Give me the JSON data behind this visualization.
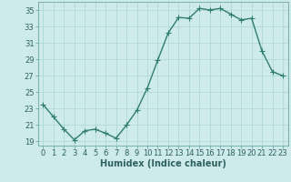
{
  "x": [
    0,
    1,
    2,
    3,
    4,
    5,
    6,
    7,
    8,
    9,
    10,
    11,
    12,
    13,
    14,
    15,
    16,
    17,
    18,
    19,
    20,
    21,
    22,
    23
  ],
  "y": [
    23.5,
    22.0,
    20.5,
    19.2,
    20.3,
    20.5,
    20.0,
    19.4,
    21.0,
    22.8,
    25.5,
    28.9,
    32.2,
    34.1,
    34.0,
    35.2,
    35.0,
    35.2,
    34.5,
    33.8,
    34.0,
    30.0,
    27.5,
    27.0
  ],
  "line_color": "#2e7d6e",
  "marker_color": "#2e7d6e",
  "bg_color": "#ceeaea",
  "grid_color": "#b0d8d8",
  "xlabel": "Humidex (Indice chaleur)",
  "ylim": [
    18.5,
    36
  ],
  "xlim": [
    -0.5,
    23.5
  ],
  "yticks": [
    19,
    21,
    23,
    25,
    27,
    29,
    31,
    33,
    35
  ],
  "xticks": [
    0,
    1,
    2,
    3,
    4,
    5,
    6,
    7,
    8,
    9,
    10,
    11,
    12,
    13,
    14,
    15,
    16,
    17,
    18,
    19,
    20,
    21,
    22,
    23
  ],
  "xlabel_fontsize": 7,
  "tick_fontsize": 6,
  "line_width": 1.0,
  "marker_size": 4
}
